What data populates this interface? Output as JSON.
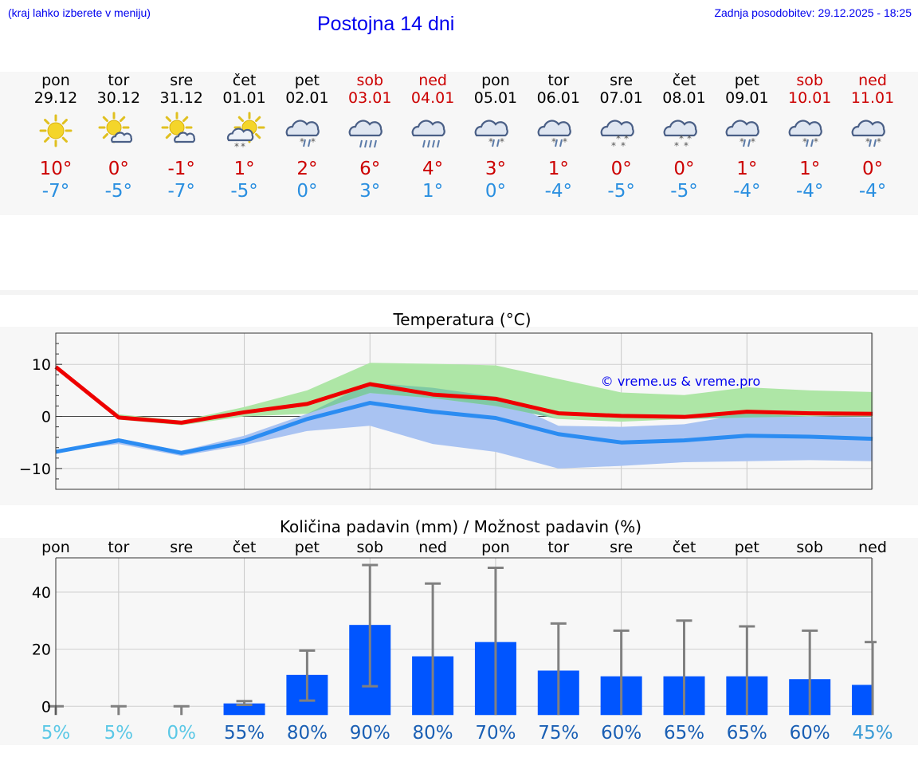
{
  "header": {
    "hint": "(kraj lahko izberete v meniju)",
    "title": "Postojna 14 dni",
    "updated": "Zadnja posodobitev: 29.12.2025 - 18:25"
  },
  "days": [
    {
      "name": "pon",
      "date": "29.12",
      "icon": "sun-icon",
      "tmax": "10°",
      "tmin": "-7°",
      "weekend": false
    },
    {
      "name": "tor",
      "date": "30.12",
      "icon": "sun-cloud-icon",
      "tmax": "0°",
      "tmin": "-5°",
      "weekend": false
    },
    {
      "name": "sre",
      "date": "31.12",
      "icon": "sun-cloud-icon",
      "tmax": "-1°",
      "tmin": "-7°",
      "weekend": false
    },
    {
      "name": "čet",
      "date": "01.01",
      "icon": "sun-cloud-snow-icon",
      "tmax": "1°",
      "tmin": "-5°",
      "weekend": false
    },
    {
      "name": "pet",
      "date": "02.01",
      "icon": "cloud-sleet-icon",
      "tmax": "2°",
      "tmin": "0°",
      "weekend": false
    },
    {
      "name": "sob",
      "date": "03.01",
      "icon": "cloud-rain-icon",
      "tmax": "6°",
      "tmin": "3°",
      "weekend": true
    },
    {
      "name": "ned",
      "date": "04.01",
      "icon": "cloud-rain-icon",
      "tmax": "4°",
      "tmin": "1°",
      "weekend": true
    },
    {
      "name": "pon",
      "date": "05.01",
      "icon": "cloud-sleet-icon",
      "tmax": "3°",
      "tmin": "0°",
      "weekend": false
    },
    {
      "name": "tor",
      "date": "06.01",
      "icon": "cloud-sleet-icon",
      "tmax": "1°",
      "tmin": "-4°",
      "weekend": false
    },
    {
      "name": "sre",
      "date": "07.01",
      "icon": "cloud-snow-icon",
      "tmax": "0°",
      "tmin": "-5°",
      "weekend": false
    },
    {
      "name": "čet",
      "date": "08.01",
      "icon": "cloud-snow-icon",
      "tmax": "0°",
      "tmin": "-5°",
      "weekend": false
    },
    {
      "name": "pet",
      "date": "09.01",
      "icon": "cloud-sleet-icon",
      "tmax": "1°",
      "tmin": "-4°",
      "weekend": false
    },
    {
      "name": "sob",
      "date": "10.01",
      "icon": "cloud-sleet-icon",
      "tmax": "1°",
      "tmin": "-4°",
      "weekend": true
    },
    {
      "name": "ned",
      "date": "11.01",
      "icon": "cloud-sleet-icon",
      "tmax": "0°",
      "tmin": "-4°",
      "weekend": true
    }
  ],
  "colors": {
    "max_line": "#ee0000",
    "min_line": "#2b8cf2",
    "max_band": "#aee6a6",
    "min_band": "#a9c3f2",
    "overlap_band": "#7fc9a4",
    "bar": "#0055ff",
    "whisker": "#808080",
    "pct_low": "#5bc8e6",
    "pct_high": "#1a5fb4"
  },
  "chart_data": [
    {
      "type": "line",
      "title": "Temperatura (°C)",
      "watermark": "© vreme.us & vreme.pro",
      "ylim": [
        -14,
        16
      ],
      "yticks": [
        -10,
        0,
        10
      ],
      "grid": true,
      "series": [
        {
          "name": "Tmax",
          "values": [
            9.5,
            -0.2,
            -1.2,
            0.8,
            2.4,
            6.2,
            4.2,
            3.4,
            0.6,
            0.1,
            -0.1,
            0.9,
            0.6,
            0.5
          ]
        },
        {
          "name": "Tmin",
          "values": [
            -6.8,
            -4.6,
            -7.0,
            -4.7,
            -0.5,
            2.6,
            0.9,
            -0.3,
            -3.4,
            -5.0,
            -4.6,
            -3.7,
            -3.9,
            -4.3
          ]
        }
      ],
      "bands": [
        {
          "name": "Tmax range",
          "low": [
            9.5,
            -0.6,
            -1.7,
            0.0,
            0.5,
            4.5,
            3.5,
            2.0,
            -0.5,
            -1.0,
            -0.5,
            -0.2,
            0.0,
            0.0
          ],
          "high": [
            9.5,
            0.4,
            -0.8,
            1.8,
            5.0,
            10.3,
            10.1,
            9.8,
            7.2,
            4.6,
            4.1,
            5.6,
            5.0,
            4.7
          ]
        },
        {
          "name": "Tmin range",
          "low": [
            -6.8,
            -5.3,
            -7.6,
            -5.5,
            -2.8,
            -1.8,
            -5.3,
            -6.8,
            -10.0,
            -9.5,
            -8.8,
            -8.6,
            -8.4,
            -8.6
          ],
          "high": [
            -6.8,
            -4.2,
            -6.6,
            -3.7,
            0.5,
            6.5,
            5.5,
            3.8,
            -1.8,
            -2.0,
            -1.5,
            0.5,
            0.0,
            -0.2
          ]
        }
      ]
    },
    {
      "type": "bar",
      "title": "Količina padavin (mm) / Možnost padavin (%)",
      "categories": [
        "pon",
        "tor",
        "sre",
        "čet",
        "pet",
        "sob",
        "ned",
        "pon",
        "tor",
        "sre",
        "čet",
        "pet",
        "sob",
        "ned"
      ],
      "ylim": [
        -3,
        52
      ],
      "yticks": [
        0,
        20,
        40
      ],
      "values": [
        0,
        0,
        0,
        1.0,
        11.0,
        28.5,
        17.5,
        22.5,
        12.5,
        10.5,
        10.5,
        10.5,
        9.5,
        7.5
      ],
      "whisker_low": [
        0,
        0,
        0,
        0.5,
        2.0,
        7.0,
        0,
        0,
        0,
        0,
        0,
        0,
        0,
        0
      ],
      "whisker_high": [
        0,
        0,
        0,
        1.8,
        19.5,
        49.5,
        43.0,
        48.5,
        29.0,
        26.5,
        30.0,
        28.0,
        26.5,
        22.5
      ],
      "probability_labels": [
        "5%",
        "5%",
        "0%",
        "55%",
        "80%",
        "90%",
        "80%",
        "70%",
        "75%",
        "60%",
        "65%",
        "65%",
        "60%",
        "45%"
      ],
      "probability": [
        5,
        5,
        0,
        55,
        80,
        90,
        80,
        70,
        75,
        60,
        65,
        65,
        60,
        45
      ]
    }
  ]
}
